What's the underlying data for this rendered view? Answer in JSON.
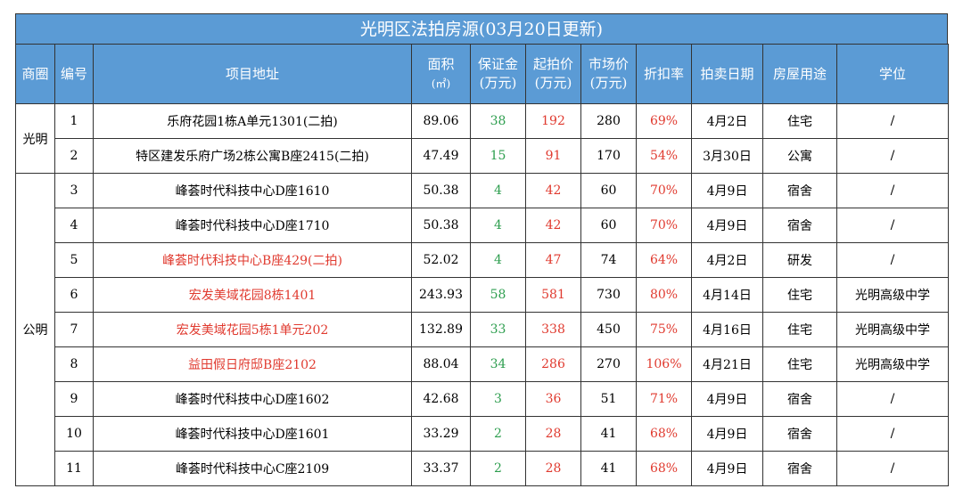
{
  "title": "光明区法拍房源(03月20日更新)",
  "headers": {
    "district": "商圈",
    "no": "编号",
    "address": "项目地址",
    "area": [
      "面积",
      "(㎡)"
    ],
    "deposit": [
      "保证金",
      "(万元)"
    ],
    "start_price": [
      "起拍价",
      "(万元)"
    ],
    "market_price": [
      "市场价",
      "(万元)"
    ],
    "discount": "折扣率",
    "auction_date": "拍卖日期",
    "usage": "房屋用途",
    "school": "学位"
  },
  "groups": [
    {
      "district": "光明",
      "rows": [
        {
          "no": "1",
          "address": "乐府花园1栋A单元1301(二拍)",
          "address_red": false,
          "area": "89.06",
          "deposit": "38",
          "start": "192",
          "market": "280",
          "discount": "69%",
          "date": "4月2日",
          "usage": "住宅",
          "school": "/"
        },
        {
          "no": "2",
          "address": "特区建发乐府广场2栋公寓B座2415(二拍)",
          "address_red": false,
          "area": "47.49",
          "deposit": "15",
          "start": "91",
          "market": "170",
          "discount": "54%",
          "date": "3月30日",
          "usage": "公寓",
          "school": "/"
        }
      ]
    },
    {
      "district": "公明",
      "rows": [
        {
          "no": "3",
          "address": "峰荟时代科技中心D座1610",
          "address_red": false,
          "area": "50.38",
          "deposit": "4",
          "start": "42",
          "market": "60",
          "discount": "70%",
          "date": "4月9日",
          "usage": "宿舍",
          "school": "/"
        },
        {
          "no": "4",
          "address": "峰荟时代科技中心D座1710",
          "address_red": false,
          "area": "50.38",
          "deposit": "4",
          "start": "42",
          "market": "60",
          "discount": "70%",
          "date": "4月9日",
          "usage": "宿舍",
          "school": "/"
        },
        {
          "no": "5",
          "address": "峰荟时代科技中心B座429(二拍)",
          "address_red": true,
          "area": "52.02",
          "deposit": "4",
          "start": "47",
          "market": "74",
          "discount": "64%",
          "date": "4月2日",
          "usage": "研发",
          "school": "/"
        },
        {
          "no": "6",
          "address": "宏发美域花园8栋1401",
          "address_red": true,
          "area": "243.93",
          "deposit": "58",
          "start": "581",
          "market": "730",
          "discount": "80%",
          "date": "4月14日",
          "usage": "住宅",
          "school": "光明高级中学"
        },
        {
          "no": "7",
          "address": "宏发美域花园5栋1单元202",
          "address_red": true,
          "area": "132.89",
          "deposit": "33",
          "start": "338",
          "market": "450",
          "discount": "75%",
          "date": "4月16日",
          "usage": "住宅",
          "school": "光明高级中学"
        },
        {
          "no": "8",
          "address": "益田假日府邸B座2102",
          "address_red": true,
          "area": "88.04",
          "deposit": "34",
          "start": "286",
          "market": "270",
          "discount": "106%",
          "date": "4月21日",
          "usage": "住宅",
          "school": "光明高级中学"
        },
        {
          "no": "9",
          "address": "峰荟时代科技中心D座1602",
          "address_red": false,
          "area": "42.68",
          "deposit": "3",
          "start": "36",
          "market": "51",
          "discount": "71%",
          "date": "4月9日",
          "usage": "宿舍",
          "school": "/"
        },
        {
          "no": "10",
          "address": "峰荟时代科技中心D座1601",
          "address_red": false,
          "area": "33.29",
          "deposit": "2",
          "start": "28",
          "market": "41",
          "discount": "68%",
          "date": "4月9日",
          "usage": "宿舍",
          "school": "/"
        },
        {
          "no": "11",
          "address": "峰荟时代科技中心C座2109",
          "address_red": false,
          "area": "33.37",
          "deposit": "2",
          "start": "28",
          "market": "41",
          "discount": "68%",
          "date": "4月9日",
          "usage": "宿舍",
          "school": "/"
        }
      ]
    }
  ],
  "colors": {
    "header_bg": "#5b9bd5",
    "deposit": "#2e9e4f",
    "price": "#e03a2f"
  }
}
